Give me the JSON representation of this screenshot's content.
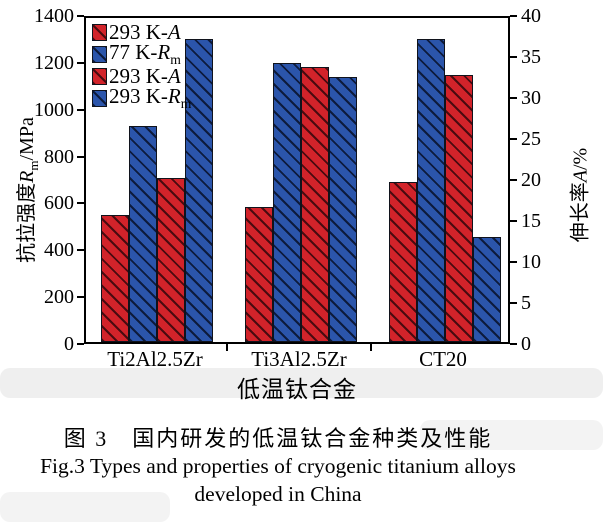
{
  "colors": {
    "red": "#d2232a",
    "blue": "#2b55ab",
    "hatch_red": "#4a0b10",
    "hatch_blue": "#0d1b3d",
    "axis": "#000000"
  },
  "chart_data": {
    "type": "bar",
    "categories": [
      "Ti2Al2.5Zr",
      "Ti3Al2.5Zr",
      "CT20"
    ],
    "series": [
      {
        "name": "293 K-A",
        "axis": "right",
        "color_key": "red",
        "values": [
          15.5,
          16.5,
          19.5
        ]
      },
      {
        "name": "77 K-Rm",
        "axis": "left",
        "color_key": "blue",
        "values": [
          920,
          1190,
          1295
        ]
      },
      {
        "name": "293 K-A",
        "axis": "right",
        "color_key": "red",
        "values": [
          20,
          33.5,
          32.5
        ]
      },
      {
        "name": "293 K-Rm",
        "axis": "left",
        "color_key": "blue",
        "values": [
          1295,
          1130,
          450
        ]
      }
    ],
    "left_axis": {
      "title_pre": "抗拉强度",
      "title_sym": "R",
      "title_sub": "m",
      "title_post": "/MPa",
      "min": 0,
      "max": 1400,
      "ticks": [
        0,
        200,
        400,
        600,
        800,
        1000,
        1200,
        1400
      ]
    },
    "right_axis": {
      "title_pre": "伸长率",
      "title_sym": "A",
      "title_sub": "",
      "title_post": "/%",
      "min": 0,
      "max": 40,
      "ticks": [
        0,
        5,
        10,
        15,
        20,
        25,
        30,
        35,
        40
      ]
    },
    "x_axis": {
      "title": "低温钛合金"
    },
    "legend": {
      "items": [
        {
          "color_key": "red",
          "pre": "293 K-",
          "sym": "A",
          "sub": ""
        },
        {
          "color_key": "blue",
          "pre": "77 K-",
          "sym": "R",
          "sub": "m"
        },
        {
          "color_key": "red",
          "pre": "293 K-",
          "sym": "A",
          "sub": ""
        },
        {
          "color_key": "blue",
          "pre": "293 K-",
          "sym": "R",
          "sub": "m"
        }
      ]
    },
    "grid": false,
    "legend_position": "upper-left-inside"
  },
  "caption": {
    "line1_zh": "图 3　国内研发的低温钛合金种类及性能",
    "line2_en": "Fig.3 Types and properties of cryogenic titanium alloys",
    "line3_en": "developed in China"
  }
}
